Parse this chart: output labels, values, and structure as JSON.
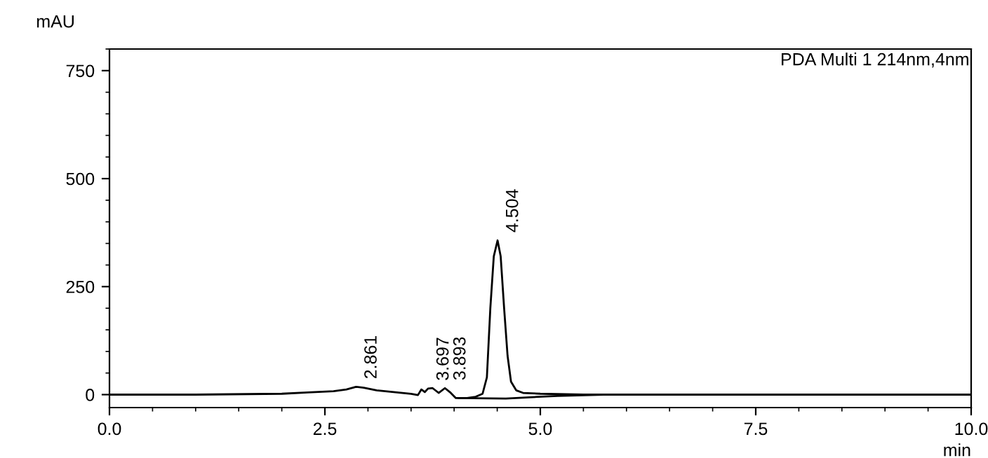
{
  "chart_data": {
    "type": "line",
    "ylabel": "mAU",
    "xlabel": "min",
    "series": [
      {
        "color": "#000000",
        "x": [
          0,
          1.0,
          2.0,
          2.3,
          2.6,
          2.75,
          2.861,
          2.95,
          3.1,
          3.3,
          3.5,
          3.58,
          3.62,
          3.66,
          3.697,
          3.75,
          3.82,
          3.893,
          3.95,
          4.02,
          4.15,
          4.25,
          4.33,
          4.38,
          4.42,
          4.46,
          4.504,
          4.54,
          4.58,
          4.62,
          4.66,
          4.72,
          4.8,
          5.0,
          5.5,
          10.0
        ],
        "values": [
          0,
          0,
          2,
          5,
          8,
          12,
          18,
          16,
          10,
          6,
          2,
          -1,
          12,
          6,
          14,
          15,
          4,
          15,
          6,
          -8,
          -8,
          -5,
          2,
          40,
          200,
          320,
          357,
          320,
          200,
          90,
          30,
          10,
          4,
          2,
          0,
          0
        ]
      },
      {
        "color": "#000000",
        "x": [
          4.05,
          4.6,
          5.2,
          5.8
        ],
        "values": [
          -8,
          -9,
          -3,
          0
        ]
      }
    ],
    "xlim": [
      0,
      10
    ],
    "xticks": [
      {
        "value": 0,
        "label": "0.0"
      },
      2.5,
      {
        "value": 5,
        "label": "5.0"
      },
      7.5,
      {
        "value": 10,
        "label": "10.0"
      }
    ],
    "ylim": [
      -30,
      800
    ],
    "yticks": [
      0,
      250,
      500,
      750
    ],
    "grid": false,
    "legend": false,
    "marker": "none",
    "line_style": "solid",
    "annotations": [
      {
        "text": "2.861",
        "x": 2.861,
        "y": 18
      },
      {
        "text": "3.697",
        "x": 3.697,
        "y": 14
      },
      {
        "text": "3.893",
        "x": 3.893,
        "y": 15
      },
      {
        "text": "4.504",
        "x": 4.504,
        "y": 357
      },
      "PDA Multi 1 214nm,4nm"
    ]
  }
}
